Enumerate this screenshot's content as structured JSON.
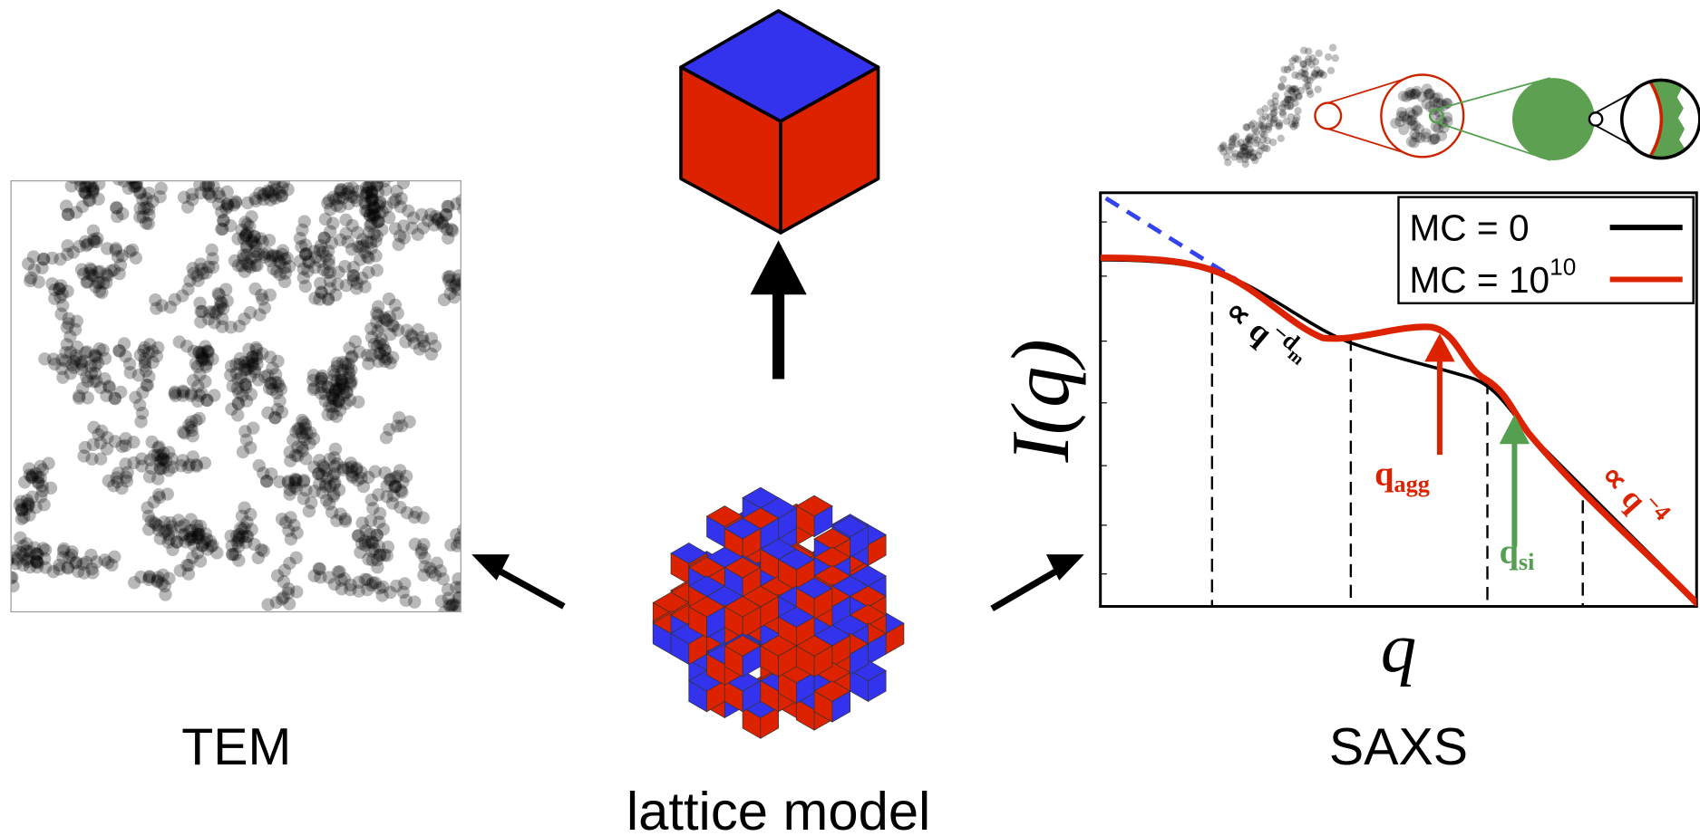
{
  "panels": {
    "tem": {
      "label": "TEM"
    },
    "lattice": {
      "label": "lattice model"
    },
    "saxs": {
      "label": "SAXS",
      "y_label": "I(q)",
      "x_label": "q",
      "legend": [
        {
          "label": "MC = 0"
        },
        {
          "label": "MC = 10",
          "exponent": "10"
        }
      ],
      "annotations": {
        "fractal": {
          "prefix": "∝ q",
          "exponent": "−d",
          "exponent_subscript": "m"
        },
        "q_agg": {
          "symbol": "q",
          "subscript": "agg"
        },
        "q_si": {
          "symbol": "q",
          "subscript": "si"
        },
        "porod": {
          "prefix": "∝ q",
          "exponent": "−4"
        }
      }
    }
  }
}
